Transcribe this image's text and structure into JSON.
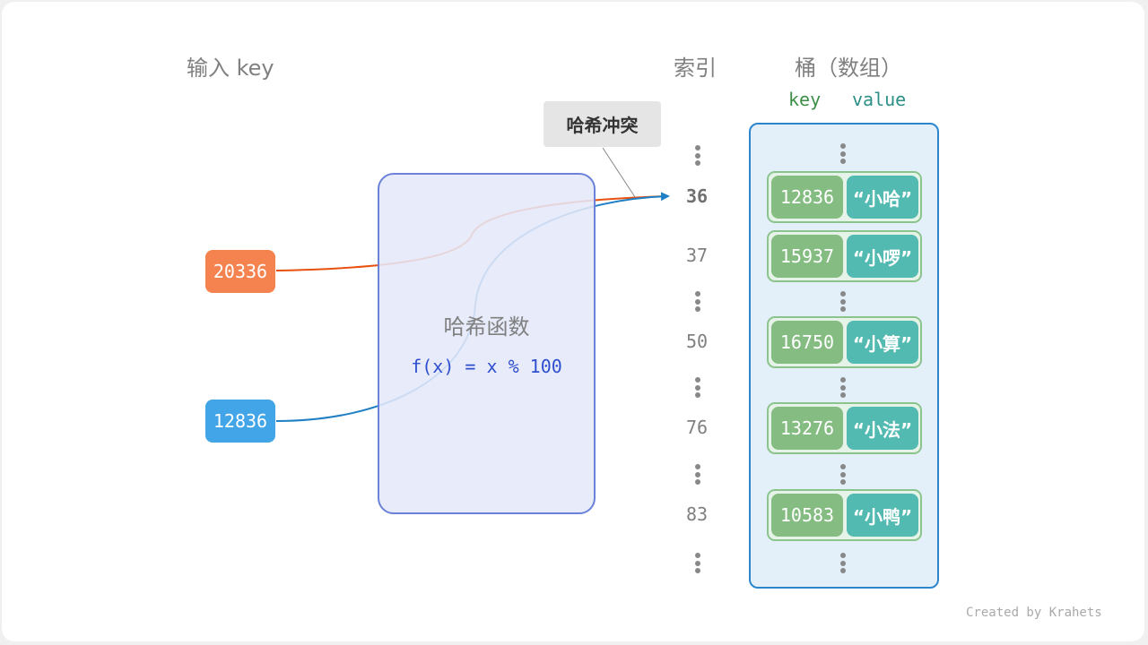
{
  "headers": {
    "input_key": "输入 key",
    "index": "索引",
    "bucket": "桶（数组）"
  },
  "columns": {
    "key": "key",
    "value": "value"
  },
  "inputs": [
    {
      "key": "20336",
      "color": "#f5834f",
      "line_color": "#e8500f"
    },
    {
      "key": "12836",
      "color": "#42a5e8",
      "line_color": "#1f7fc4"
    }
  ],
  "hash_function": {
    "title": "哈希函数",
    "formula": "f(x) = x % 100"
  },
  "collision_label": "哈希冲突",
  "indices": [
    "36",
    "37",
    "50",
    "76",
    "83"
  ],
  "buckets": [
    {
      "key": "12836",
      "value": "“小哈”"
    },
    {
      "key": "15937",
      "value": "“小啰”"
    },
    {
      "key": "16750",
      "value": "“小算”"
    },
    {
      "key": "13276",
      "value": "“小法”"
    },
    {
      "key": "10583",
      "value": "“小鸭”"
    }
  ],
  "credit": "Created by Krahets"
}
